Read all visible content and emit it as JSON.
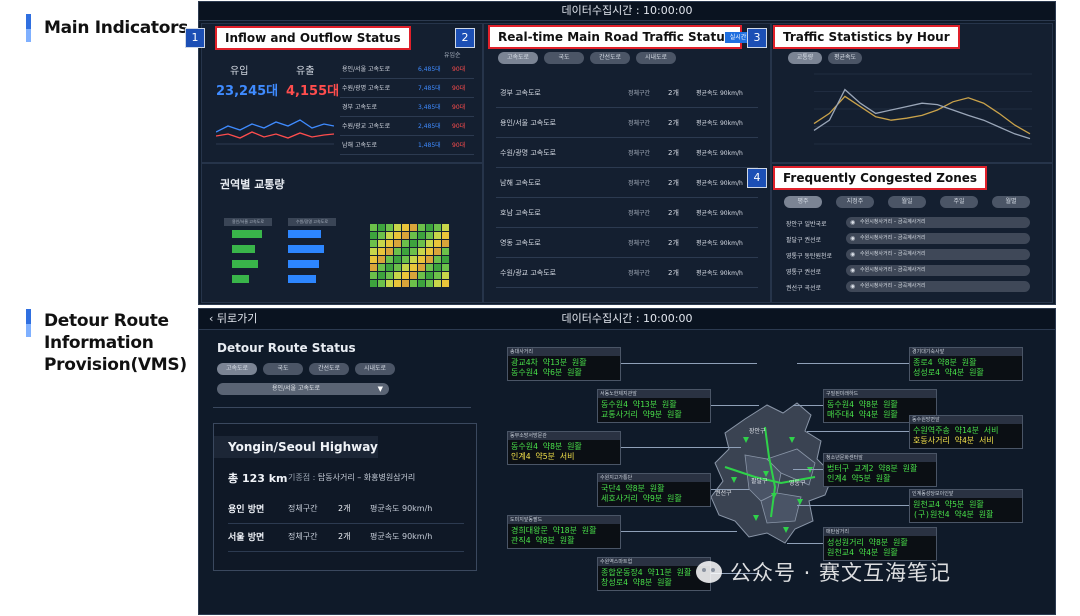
{
  "sections": {
    "main_label": "Main Indicators",
    "detour_label_1": "Detour Route",
    "detour_label_2": "Information",
    "detour_label_3": "Provision(VMS)"
  },
  "top": {
    "header": "데이터수집시간 : 10:00:00",
    "inflow": {
      "badge": "1",
      "label": "Inflow and Outflow Status",
      "in_label": "유입",
      "out_label": "유출",
      "in_value": "23,245대",
      "out_value": "4,155대",
      "col_right": "유입순",
      "rows": [
        {
          "name": "용인/서울 고속도로",
          "a": "6,485대",
          "b": "90대"
        },
        {
          "name": "수원/광명 고속도로",
          "a": "7,485대",
          "b": "90대"
        },
        {
          "name": "경부 고속도로",
          "a": "3,485대",
          "b": "90대"
        },
        {
          "name": "수원/광교 고속도로",
          "a": "2,485대",
          "b": "90대"
        },
        {
          "name": "남해 고속도로",
          "a": "1,485대",
          "b": "90대"
        }
      ]
    },
    "regional": {
      "title": "권역별 교통량",
      "legend_a": "용인/서울 고속도로",
      "legend_b": "수원/광명 고속도로",
      "bars_a": [
        0.62,
        0.48,
        0.55,
        0.36
      ],
      "bars_b": [
        0.68,
        0.75,
        0.64,
        0.58
      ]
    },
    "realtime": {
      "badge": "2",
      "label": "Real-time Main Road Traffic Status",
      "side_tag": "실시간",
      "tabs": [
        "고속도로",
        "국도",
        "간선도로",
        "시내도로"
      ],
      "rows": [
        {
          "name": "경부 고속도로",
          "seg": "정체구간",
          "cnt": "2개",
          "spd": "평균속도 90km/h"
        },
        {
          "name": "용인/서울 고속도로",
          "seg": "정체구간",
          "cnt": "2개",
          "spd": "평균속도 90km/h"
        },
        {
          "name": "수원/광명 고속도로",
          "seg": "정체구간",
          "cnt": "2개",
          "spd": "평균속도 90km/h"
        },
        {
          "name": "남해 고속도로",
          "seg": "정체구간",
          "cnt": "2개",
          "spd": "평균속도 90km/h"
        },
        {
          "name": "호남 고속도로",
          "seg": "정체구간",
          "cnt": "2개",
          "spd": "평균속도 90km/h"
        },
        {
          "name": "영동 고속도로",
          "seg": "정체구간",
          "cnt": "2개",
          "spd": "평균속도 90km/h"
        },
        {
          "name": "수원/광교 고속도로",
          "seg": "정체구간",
          "cnt": "2개",
          "spd": "평균속도 90km/h"
        }
      ]
    },
    "hourly": {
      "badge": "3",
      "label": "Traffic Statistics by Hour",
      "tabs": [
        "교통량",
        "평균속도"
      ],
      "series_a": [
        0.3,
        0.45,
        0.7,
        0.55,
        0.4,
        0.35,
        0.38,
        0.42,
        0.5,
        0.62,
        0.68,
        0.6,
        0.45,
        0.28,
        0.15
      ],
      "series_b": [
        0.2,
        0.35,
        0.8,
        0.6,
        0.45,
        0.5,
        0.55,
        0.6,
        0.58,
        0.5,
        0.42,
        0.35,
        0.25,
        0.15,
        0.08
      ]
    },
    "congested": {
      "badge": "4",
      "label": "Frequently Congested Zones",
      "tabs": [
        "평주",
        "지정주",
        "월일",
        "주일",
        "월별"
      ],
      "rows": [
        {
          "name": "장안구 일반국로",
          "loc": "수원시청사거리 – 금곡계사거리"
        },
        {
          "name": "팔달구 권선로",
          "loc": "수원시청사거리 – 금곡계사거리"
        },
        {
          "name": "영통구 동탄원천로",
          "loc": "수원시청사거리 – 금곡계사거리"
        },
        {
          "name": "영통구 권선로",
          "loc": "수원시청사거리 – 금곡계사거리"
        },
        {
          "name": "권선구 곡선로",
          "loc": "수원시청사거리 – 금곡계사거리"
        }
      ]
    }
  },
  "bottom": {
    "back": "뒤로가기",
    "header": "데이터수집시간 : 10:00:00",
    "title": "Detour Route Status",
    "tabs": [
      "고속도로",
      "국도",
      "간선도로",
      "시내도로"
    ],
    "select": "용인/서울 고속도로",
    "card": {
      "title": "Yongin/Seoul Highway",
      "total": "총 123 km",
      "route_label": "기종점 : ",
      "route": "탑동사거리 – 화홍병원삼거리",
      "rows": [
        {
          "dir": "용인 방면",
          "seg": "정체구간",
          "cnt": "2개",
          "spd": "평균속도 90km/h"
        },
        {
          "dir": "서울 방면",
          "seg": "정체구간",
          "cnt": "2개",
          "spd": "평균속도 90km/h"
        }
      ]
    },
    "map_labels": {
      "a": "장안구",
      "b": "팔달구",
      "c": "권선구",
      "d": "영통구"
    },
    "vms_boards": [
      {
        "cap": "송대사거리",
        "l1": "광교4차  약13분 원활",
        "l2": "동수원4  약6분 원활",
        "l2y": false
      },
      {
        "cap": "서동노한제지관앞",
        "l1": "동수원4  약13분 원활",
        "l2": "교통사거리  약9분 원활",
        "l2y": false
      },
      {
        "cap": "동부소방서방문관",
        "l1": "동수원4  약8분 원활",
        "l2": "인계4  약5분 서비",
        "l2y": true
      },
      {
        "cap": "수원지고가통단",
        "l1": "국단4  약8분 원활",
        "l2": "세호사거리  약9분 원활",
        "l2y": false
      },
      {
        "cap": "도미지앞동팔드",
        "l1": "경희대왕문  약18분 원활",
        "l2": "관직4  약8분 원활",
        "l2y": false
      },
      {
        "cap": "수원역스마트업",
        "l1": "종합운동장4  약11분 원활",
        "l2": "창성로4  약8분 원활",
        "l2y": false
      },
      {
        "cap": "경기대기숙사앞",
        "l1": "종로4  약8분 원활",
        "l2": "성성로4  약4분 원활",
        "l2y": false
      },
      {
        "cap": "구밀된미래하드",
        "l1": "동수원4  약8분 원활",
        "l2": "매주대4  약4분 원활",
        "l2y": false
      },
      {
        "cap": "동수원방면앞",
        "l1": "수원역주송  약14분 서비",
        "l2": "호동사거리  약4분 서비",
        "l2y": true
      },
      {
        "cap": "청소년문화센터앞",
        "l1": "법터구 교계2  약8분 원활",
        "l2": "인계4  약5분 원활",
        "l2y": false
      },
      {
        "cap": "인계동성당보이인앞",
        "l1": "원천교4  약5분 원활",
        "l2": "(구)원천4  약4분 원활",
        "l2y": false
      },
      {
        "cap": "매탄삼거리",
        "l1": "성성원거리  약8분 원활",
        "l2": "원천교4  약4분 원활",
        "l2y": false
      }
    ]
  },
  "watermark": "公众号 · 赛文互海笔记"
}
